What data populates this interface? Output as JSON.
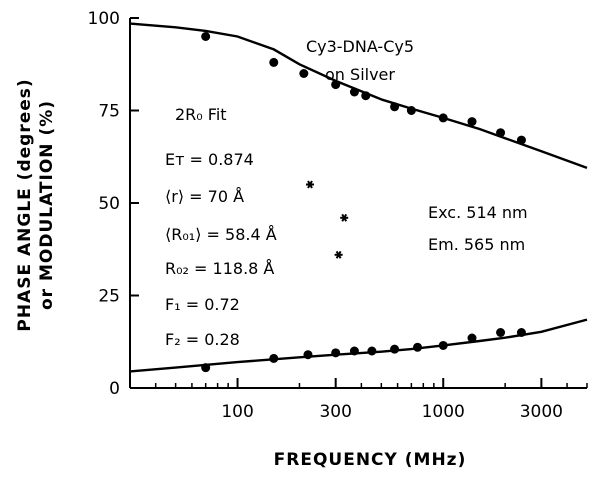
{
  "chart_data": {
    "type": "scatter",
    "title": "",
    "xlabel": "FREQUENCY (MHz)",
    "ylabel_line1": "PHASE ANGLE (degrees)",
    "ylabel_line2": "or MODULATION (%)",
    "xscale": "log",
    "xlim": [
      30,
      5000
    ],
    "ylim": [
      0,
      100
    ],
    "grid": false,
    "x_ticks": [
      100,
      300,
      1000,
      3000
    ],
    "x_tick_labels": [
      "100",
      "300",
      "1000",
      "3000"
    ],
    "y_ticks": [
      0,
      25,
      50,
      75,
      100
    ],
    "y_tick_labels": [
      "0",
      "25",
      "50",
      "75",
      "100"
    ],
    "series": [
      {
        "marker": "circle",
        "points": [
          {
            "x": 70,
            "y": 95
          },
          {
            "x": 150,
            "y": 88
          },
          {
            "x": 210,
            "y": 85
          },
          {
            "x": 300,
            "y": 82
          },
          {
            "x": 370,
            "y": 80
          },
          {
            "x": 420,
            "y": 79
          },
          {
            "x": 580,
            "y": 76
          },
          {
            "x": 700,
            "y": 75
          },
          {
            "x": 1000,
            "y": 73
          },
          {
            "x": 1380,
            "y": 72
          },
          {
            "x": 1900,
            "y": 69
          },
          {
            "x": 2400,
            "y": 67
          }
        ],
        "fit": [
          {
            "x": 30,
            "y": 98.5
          },
          {
            "x": 50,
            "y": 97.5
          },
          {
            "x": 70,
            "y": 96.5
          },
          {
            "x": 100,
            "y": 95
          },
          {
            "x": 150,
            "y": 91.5
          },
          {
            "x": 200,
            "y": 87.5
          },
          {
            "x": 300,
            "y": 83
          },
          {
            "x": 500,
            "y": 78
          },
          {
            "x": 700,
            "y": 75.5
          },
          {
            "x": 1000,
            "y": 73
          },
          {
            "x": 1500,
            "y": 70
          },
          {
            "x": 2000,
            "y": 67.5
          },
          {
            "x": 3000,
            "y": 64
          },
          {
            "x": 5000,
            "y": 59.5
          }
        ]
      },
      {
        "marker": "circle",
        "points": [
          {
            "x": 70,
            "y": 5.5
          },
          {
            "x": 150,
            "y": 8
          },
          {
            "x": 220,
            "y": 9
          },
          {
            "x": 300,
            "y": 9.5
          },
          {
            "x": 370,
            "y": 10
          },
          {
            "x": 450,
            "y": 10
          },
          {
            "x": 580,
            "y": 10.5
          },
          {
            "x": 750,
            "y": 11
          },
          {
            "x": 1000,
            "y": 11.5
          },
          {
            "x": 1380,
            "y": 13.5
          },
          {
            "x": 1900,
            "y": 15
          },
          {
            "x": 2400,
            "y": 15
          }
        ],
        "fit": [
          {
            "x": 30,
            "y": 4.5
          },
          {
            "x": 50,
            "y": 5.5
          },
          {
            "x": 100,
            "y": 7
          },
          {
            "x": 200,
            "y": 8.3
          },
          {
            "x": 300,
            "y": 9
          },
          {
            "x": 500,
            "y": 9.8
          },
          {
            "x": 700,
            "y": 10.5
          },
          {
            "x": 1000,
            "y": 11.5
          },
          {
            "x": 1500,
            "y": 12.7
          },
          {
            "x": 2000,
            "y": 13.6
          },
          {
            "x": 3000,
            "y": 15.2
          },
          {
            "x": 5000,
            "y": 18.5
          }
        ]
      },
      {
        "marker": "asterisk",
        "points": [
          {
            "x": 225,
            "y": 55
          },
          {
            "x": 330,
            "y": 46
          },
          {
            "x": 310,
            "y": 36
          }
        ]
      }
    ],
    "annotations": {
      "sample_line1": "Cy3-DNA-Cy5",
      "sample_line2": "on Silver",
      "fit_label": "2R₀ Fit",
      "params": [
        "Eᴛ = 0.874",
        "⟨r⟩ = 70 Å",
        "⟨R₀₁⟩ = 58.4 Å",
        "R₀₂ = 118.8 Å",
        "F₁ = 0.72",
        "F₂ = 0.28"
      ],
      "excitation": "Exc. 514 nm",
      "emission": "Em. 565 nm"
    }
  }
}
